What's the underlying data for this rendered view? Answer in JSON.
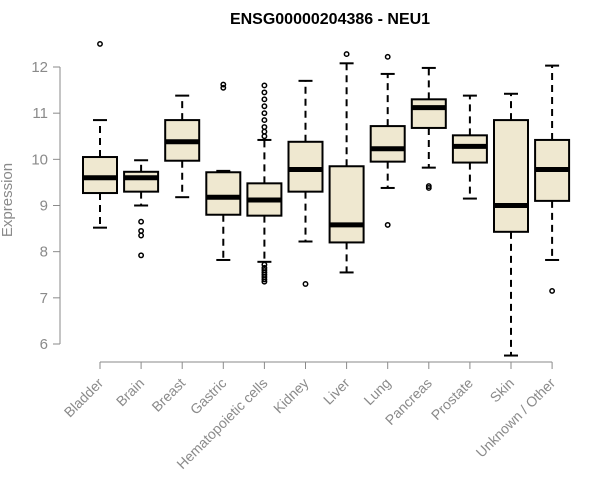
{
  "chart_data": {
    "type": "boxplot",
    "title": "ENSG00000204386 - NEU1",
    "xlabel": "",
    "ylabel": "Expression",
    "ylim": [
      5.7,
      12.6
    ],
    "yticks": [
      6,
      7,
      8,
      9,
      10,
      11,
      12
    ],
    "categories": [
      "Bladder",
      "Brain",
      "Breast",
      "Gastric",
      "Hematopoietic cells",
      "Kidney",
      "Liver",
      "Lung",
      "Pancreas",
      "Prostate",
      "Skin",
      "Unknown / Other"
    ],
    "series": [
      {
        "name": "Bladder",
        "whisker_low": 8.52,
        "q1": 9.27,
        "median": 9.6,
        "q3": 10.05,
        "whisker_high": 10.85,
        "outliers": [
          12.5
        ]
      },
      {
        "name": "Brain",
        "whisker_low": 9.0,
        "q1": 9.3,
        "median": 9.6,
        "q3": 9.73,
        "whisker_high": 9.98,
        "outliers": [
          8.65,
          8.45,
          8.35,
          7.92
        ]
      },
      {
        "name": "Breast",
        "whisker_low": 9.18,
        "q1": 9.97,
        "median": 10.38,
        "q3": 10.85,
        "whisker_high": 11.38,
        "outliers": []
      },
      {
        "name": "Gastric",
        "whisker_low": 7.82,
        "q1": 8.8,
        "median": 9.18,
        "q3": 9.72,
        "whisker_high": 9.75,
        "outliers": [
          11.62,
          11.55
        ]
      },
      {
        "name": "Hematopoietic cells",
        "whisker_low": 7.78,
        "q1": 8.78,
        "median": 9.12,
        "q3": 9.48,
        "whisker_high": 10.42,
        "outliers": [
          11.6,
          11.45,
          11.3,
          11.15,
          11.0,
          10.85,
          10.7,
          10.6,
          10.5,
          7.72,
          7.65,
          7.6,
          7.55,
          7.5,
          7.45,
          7.4,
          7.35
        ]
      },
      {
        "name": "Kidney",
        "whisker_low": 8.22,
        "q1": 9.3,
        "median": 9.78,
        "q3": 10.38,
        "whisker_high": 11.7,
        "outliers": [
          7.3
        ]
      },
      {
        "name": "Liver",
        "whisker_low": 7.55,
        "q1": 8.2,
        "median": 8.58,
        "q3": 9.85,
        "whisker_high": 12.08,
        "outliers": [
          12.28
        ]
      },
      {
        "name": "Lung",
        "whisker_low": 9.38,
        "q1": 9.95,
        "median": 10.23,
        "q3": 10.72,
        "whisker_high": 11.85,
        "outliers": [
          12.22,
          8.58
        ]
      },
      {
        "name": "Pancreas",
        "whisker_low": 9.82,
        "q1": 10.68,
        "median": 11.12,
        "q3": 11.3,
        "whisker_high": 11.98,
        "outliers": [
          9.42,
          9.38
        ]
      },
      {
        "name": "Prostate",
        "whisker_low": 9.15,
        "q1": 9.93,
        "median": 10.28,
        "q3": 10.52,
        "whisker_high": 11.38,
        "outliers": []
      },
      {
        "name": "Skin",
        "whisker_low": 5.75,
        "q1": 8.43,
        "median": 9.0,
        "q3": 10.85,
        "whisker_high": 11.42,
        "outliers": []
      },
      {
        "name": "Unknown / Other",
        "whisker_low": 7.82,
        "q1": 9.1,
        "median": 9.78,
        "q3": 10.42,
        "whisker_high": 12.03,
        "outliers": [
          7.15
        ]
      }
    ]
  }
}
